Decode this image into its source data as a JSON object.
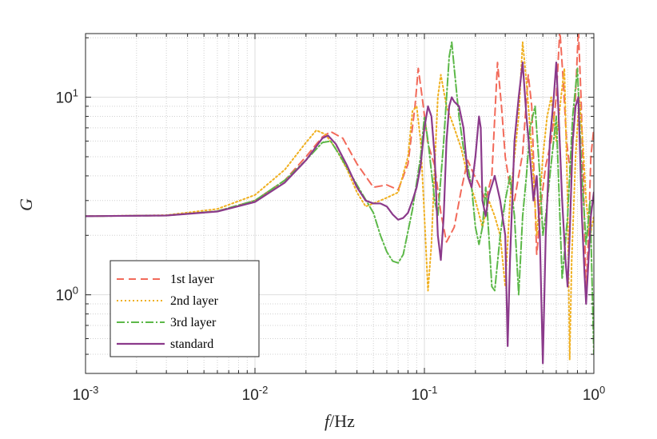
{
  "chart_data": {
    "type": "line",
    "title": "",
    "xlabel": {
      "italic": "f",
      "rest": "/Hz"
    },
    "ylabel": "G",
    "xscale": "log",
    "yscale": "log",
    "xlim": [
      0.001,
      1
    ],
    "ylim": [
      0.4,
      21
    ],
    "grid": true,
    "legend_position": "bottom-left",
    "x_ticks": [
      {
        "value": 0.001,
        "base": "10",
        "exp": "-3"
      },
      {
        "value": 0.01,
        "base": "10",
        "exp": "-2"
      },
      {
        "value": 0.1,
        "base": "10",
        "exp": "-1"
      },
      {
        "value": 1,
        "base": "10",
        "exp": "0"
      }
    ],
    "y_ticks": [
      {
        "value": 1,
        "base": "10",
        "exp": "0"
      },
      {
        "value": 10,
        "base": "10",
        "exp": "1"
      }
    ],
    "series": [
      {
        "name": "1st layer",
        "color": "#f26a5a",
        "dash": "9,6",
        "points": [
          [
            0.001,
            2.5
          ],
          [
            0.003,
            2.52
          ],
          [
            0.006,
            2.65
          ],
          [
            0.01,
            3.0
          ],
          [
            0.015,
            3.8
          ],
          [
            0.02,
            5.0
          ],
          [
            0.025,
            6.3
          ],
          [
            0.028,
            6.7
          ],
          [
            0.033,
            6.2
          ],
          [
            0.04,
            4.6
          ],
          [
            0.05,
            3.5
          ],
          [
            0.06,
            3.6
          ],
          [
            0.07,
            3.4
          ],
          [
            0.08,
            4.6
          ],
          [
            0.088,
            9.0
          ],
          [
            0.092,
            14.0
          ],
          [
            0.097,
            10.0
          ],
          [
            0.105,
            5.8
          ],
          [
            0.115,
            4.5
          ],
          [
            0.125,
            2.6
          ],
          [
            0.135,
            1.85
          ],
          [
            0.15,
            2.2
          ],
          [
            0.165,
            3.4
          ],
          [
            0.18,
            4.8
          ],
          [
            0.195,
            4.1
          ],
          [
            0.21,
            3.6
          ],
          [
            0.23,
            3.0
          ],
          [
            0.25,
            4.0
          ],
          [
            0.27,
            15.0
          ],
          [
            0.285,
            9.0
          ],
          [
            0.3,
            5.0
          ],
          [
            0.32,
            3.5
          ],
          [
            0.34,
            3.0
          ],
          [
            0.36,
            4.0
          ],
          [
            0.38,
            5.2
          ],
          [
            0.41,
            13.0
          ],
          [
            0.43,
            9.0
          ],
          [
            0.46,
            1.6
          ],
          [
            0.49,
            3.0
          ],
          [
            0.52,
            4.5
          ],
          [
            0.56,
            6.0
          ],
          [
            0.6,
            10.0
          ],
          [
            0.63,
            22.0
          ],
          [
            0.66,
            12.0
          ],
          [
            0.69,
            6.0
          ],
          [
            0.73,
            4.0
          ],
          [
            0.77,
            8.0
          ],
          [
            0.81,
            22.0
          ],
          [
            0.84,
            10.0
          ],
          [
            0.87,
            3.5
          ],
          [
            0.9,
            1.0
          ],
          [
            0.93,
            2.0
          ],
          [
            0.96,
            5.0
          ],
          [
            1.0,
            7.0
          ]
        ]
      },
      {
        "name": "2nd layer",
        "color": "#f0b020",
        "dash": "2,3",
        "points": [
          [
            0.001,
            2.5
          ],
          [
            0.003,
            2.53
          ],
          [
            0.006,
            2.72
          ],
          [
            0.01,
            3.2
          ],
          [
            0.015,
            4.3
          ],
          [
            0.02,
            5.9
          ],
          [
            0.023,
            6.8
          ],
          [
            0.026,
            6.5
          ],
          [
            0.03,
            5.5
          ],
          [
            0.035,
            4.3
          ],
          [
            0.04,
            3.3
          ],
          [
            0.045,
            2.8
          ],
          [
            0.05,
            2.9
          ],
          [
            0.06,
            3.1
          ],
          [
            0.07,
            3.3
          ],
          [
            0.08,
            5.0
          ],
          [
            0.085,
            8.5
          ],
          [
            0.09,
            9.0
          ],
          [
            0.095,
            6.0
          ],
          [
            0.1,
            2.5
          ],
          [
            0.105,
            1.05
          ],
          [
            0.11,
            1.8
          ],
          [
            0.115,
            4.5
          ],
          [
            0.12,
            10.0
          ],
          [
            0.125,
            13.0
          ],
          [
            0.135,
            9.0
          ],
          [
            0.15,
            7.0
          ],
          [
            0.165,
            5.5
          ],
          [
            0.18,
            4.0
          ],
          [
            0.2,
            3.0
          ],
          [
            0.22,
            2.2
          ],
          [
            0.24,
            3.0
          ],
          [
            0.26,
            2.5
          ],
          [
            0.28,
            2.0
          ],
          [
            0.3,
            1.1
          ],
          [
            0.32,
            3.0
          ],
          [
            0.34,
            5.0
          ],
          [
            0.36,
            8.0
          ],
          [
            0.38,
            19.0
          ],
          [
            0.4,
            12.0
          ],
          [
            0.42,
            7.0
          ],
          [
            0.44,
            4.0
          ],
          [
            0.46,
            2.0
          ],
          [
            0.48,
            3.0
          ],
          [
            0.5,
            5.0
          ],
          [
            0.53,
            8.0
          ],
          [
            0.56,
            10.0
          ],
          [
            0.6,
            6.0
          ],
          [
            0.64,
            10.0
          ],
          [
            0.67,
            14.0
          ],
          [
            0.7,
            3.0
          ],
          [
            0.72,
            0.47
          ],
          [
            0.74,
            1.5
          ],
          [
            0.78,
            5.0
          ],
          [
            0.82,
            10.0
          ],
          [
            0.86,
            6.0
          ],
          [
            0.9,
            3.0
          ],
          [
            0.95,
            2.0
          ],
          [
            1.0,
            2.5
          ]
        ]
      },
      {
        "name": "3rd layer",
        "color": "#5cb848",
        "dash": "10,3,2,3",
        "points": [
          [
            0.001,
            2.5
          ],
          [
            0.003,
            2.52
          ],
          [
            0.006,
            2.65
          ],
          [
            0.01,
            3.0
          ],
          [
            0.015,
            3.8
          ],
          [
            0.02,
            4.8
          ],
          [
            0.025,
            5.9
          ],
          [
            0.028,
            6.0
          ],
          [
            0.032,
            5.0
          ],
          [
            0.04,
            3.6
          ],
          [
            0.05,
            2.6
          ],
          [
            0.055,
            2.0
          ],
          [
            0.06,
            1.65
          ],
          [
            0.065,
            1.48
          ],
          [
            0.07,
            1.45
          ],
          [
            0.075,
            1.6
          ],
          [
            0.085,
            2.7
          ],
          [
            0.095,
            5.0
          ],
          [
            0.1,
            8.0
          ],
          [
            0.105,
            6.0
          ],
          [
            0.115,
            3.0
          ],
          [
            0.12,
            2.5
          ],
          [
            0.13,
            6.0
          ],
          [
            0.14,
            16.0
          ],
          [
            0.145,
            19.0
          ],
          [
            0.15,
            14.0
          ],
          [
            0.16,
            8.0
          ],
          [
            0.17,
            5.5
          ],
          [
            0.18,
            4.5
          ],
          [
            0.19,
            3.5
          ],
          [
            0.2,
            2.2
          ],
          [
            0.21,
            1.8
          ],
          [
            0.22,
            2.2
          ],
          [
            0.23,
            3.5
          ],
          [
            0.24,
            2.0
          ],
          [
            0.25,
            1.1
          ],
          [
            0.26,
            1.05
          ],
          [
            0.28,
            2.0
          ],
          [
            0.3,
            3.0
          ],
          [
            0.32,
            4.0
          ],
          [
            0.34,
            2.5
          ],
          [
            0.36,
            1.0
          ],
          [
            0.38,
            2.5
          ],
          [
            0.4,
            4.0
          ],
          [
            0.42,
            7.0
          ],
          [
            0.45,
            9.0
          ],
          [
            0.48,
            4.0
          ],
          [
            0.5,
            2.0
          ],
          [
            0.52,
            2.5
          ],
          [
            0.55,
            4.0
          ],
          [
            0.6,
            8.0
          ],
          [
            0.65,
            1.2
          ],
          [
            0.7,
            2.5
          ],
          [
            0.75,
            8.0
          ],
          [
            0.8,
            14.0
          ],
          [
            0.85,
            4.0
          ],
          [
            0.9,
            1.8
          ],
          [
            0.95,
            3.0
          ],
          [
            0.98,
            1.0
          ],
          [
            1.0,
            0.5
          ]
        ]
      },
      {
        "name": "standard",
        "color": "#8b3a8b",
        "dash": "",
        "points": [
          [
            0.001,
            2.5
          ],
          [
            0.003,
            2.52
          ],
          [
            0.006,
            2.64
          ],
          [
            0.01,
            2.95
          ],
          [
            0.015,
            3.7
          ],
          [
            0.02,
            4.8
          ],
          [
            0.025,
            6.2
          ],
          [
            0.027,
            6.4
          ],
          [
            0.03,
            5.8
          ],
          [
            0.035,
            4.5
          ],
          [
            0.04,
            3.5
          ],
          [
            0.045,
            3.0
          ],
          [
            0.05,
            2.9
          ],
          [
            0.055,
            2.9
          ],
          [
            0.06,
            2.8
          ],
          [
            0.065,
            2.55
          ],
          [
            0.07,
            2.4
          ],
          [
            0.075,
            2.45
          ],
          [
            0.08,
            2.6
          ],
          [
            0.085,
            3.0
          ],
          [
            0.09,
            3.5
          ],
          [
            0.095,
            4.5
          ],
          [
            0.1,
            7.0
          ],
          [
            0.105,
            9.0
          ],
          [
            0.11,
            8.0
          ],
          [
            0.115,
            5.0
          ],
          [
            0.12,
            2.0
          ],
          [
            0.125,
            1.5
          ],
          [
            0.13,
            2.5
          ],
          [
            0.135,
            6.0
          ],
          [
            0.14,
            9.0
          ],
          [
            0.145,
            10.0
          ],
          [
            0.15,
            9.5
          ],
          [
            0.16,
            9.0
          ],
          [
            0.17,
            7.0
          ],
          [
            0.18,
            4.0
          ],
          [
            0.19,
            3.5
          ],
          [
            0.2,
            5.0
          ],
          [
            0.21,
            8.0
          ],
          [
            0.215,
            7.0
          ],
          [
            0.22,
            3.0
          ],
          [
            0.23,
            2.5
          ],
          [
            0.24,
            3.2
          ],
          [
            0.26,
            4.0
          ],
          [
            0.28,
            3.0
          ],
          [
            0.3,
            2.0
          ],
          [
            0.31,
            0.55
          ],
          [
            0.32,
            1.5
          ],
          [
            0.34,
            6.0
          ],
          [
            0.36,
            10.0
          ],
          [
            0.38,
            15.0
          ],
          [
            0.4,
            8.0
          ],
          [
            0.42,
            5.0
          ],
          [
            0.44,
            3.0
          ],
          [
            0.46,
            4.0
          ],
          [
            0.48,
            2.0
          ],
          [
            0.5,
            0.45
          ],
          [
            0.52,
            2.0
          ],
          [
            0.55,
            6.0
          ],
          [
            0.58,
            10.0
          ],
          [
            0.6,
            15.0
          ],
          [
            0.62,
            8.0
          ],
          [
            0.65,
            3.0
          ],
          [
            0.68,
            1.5
          ],
          [
            0.7,
            1.1
          ],
          [
            0.72,
            2.0
          ],
          [
            0.75,
            6.0
          ],
          [
            0.78,
            9.0
          ],
          [
            0.81,
            10.0
          ],
          [
            0.83,
            5.0
          ],
          [
            0.85,
            2.5
          ],
          [
            0.88,
            1.3
          ],
          [
            0.9,
            0.9
          ],
          [
            0.93,
            1.5
          ],
          [
            0.96,
            2.5
          ],
          [
            1.0,
            3.3
          ]
        ]
      }
    ]
  }
}
